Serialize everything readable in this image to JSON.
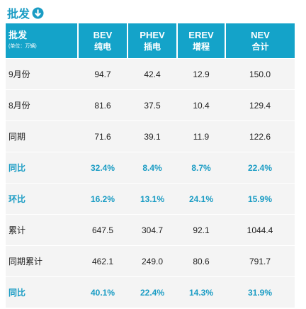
{
  "title": "批发",
  "table": {
    "header": [
      {
        "main": "批发",
        "sub": "(单位：万辆)"
      },
      {
        "main": "BEV",
        "sub": "纯电"
      },
      {
        "main": "PHEV",
        "sub": "插电"
      },
      {
        "main": "EREV",
        "sub": "增程"
      },
      {
        "main": "NEV",
        "sub": "合计"
      }
    ],
    "rows": [
      [
        "9月份",
        "94.7",
        "42.4",
        "12.9",
        "150.0"
      ],
      [
        "8月份",
        "81.6",
        "37.5",
        "10.4",
        "129.4"
      ],
      [
        "同期",
        "71.6",
        "39.1",
        "11.9",
        "122.6"
      ],
      [
        "同比",
        "32.4%",
        "8.4%",
        "8.7%",
        "22.4%"
      ],
      [
        "环比",
        "16.2%",
        "13.1%",
        "24.1%",
        "15.9%"
      ],
      [
        "累计",
        "647.5",
        "304.7",
        "92.1",
        "1044.4"
      ],
      [
        "同期累计",
        "462.1",
        "249.0",
        "80.6",
        "791.7"
      ],
      [
        "同比",
        "40.1%",
        "22.4%",
        "14.3%",
        "31.9%"
      ]
    ]
  }
}
